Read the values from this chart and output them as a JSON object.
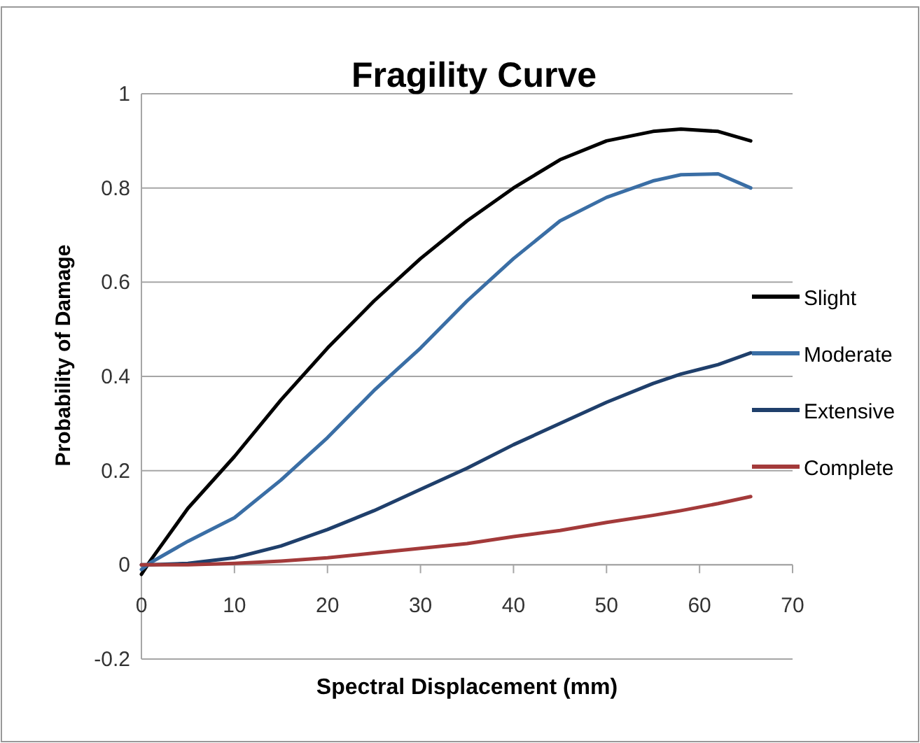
{
  "chart_data": {
    "type": "line",
    "title": "Fragility Curve",
    "xlabel": "Spectral Displacement (mm)",
    "ylabel": "Probability of Damage",
    "x": [
      0,
      1,
      5,
      10,
      15,
      20,
      25,
      30,
      35,
      40,
      45,
      50,
      55,
      58,
      62,
      65.5
    ],
    "series": [
      {
        "name": "Slight",
        "color": "#000000",
        "values": [
          -0.02,
          0.01,
          0.12,
          0.23,
          0.35,
          0.46,
          0.56,
          0.65,
          0.73,
          0.8,
          0.86,
          0.9,
          0.92,
          0.925,
          0.92,
          0.9
        ]
      },
      {
        "name": "Moderate",
        "color": "#3a6ea5",
        "values": [
          -0.01,
          0.005,
          0.05,
          0.1,
          0.18,
          0.27,
          0.37,
          0.46,
          0.56,
          0.65,
          0.73,
          0.78,
          0.815,
          0.828,
          0.83,
          0.8
        ]
      },
      {
        "name": "Extensive",
        "color": "#1f3f6b",
        "values": [
          0,
          0,
          0.003,
          0.015,
          0.04,
          0.075,
          0.115,
          0.16,
          0.205,
          0.255,
          0.3,
          0.345,
          0.385,
          0.405,
          0.425,
          0.45
        ]
      },
      {
        "name": "Complete",
        "color": "#a33a3a",
        "values": [
          0,
          0,
          0,
          0.003,
          0.008,
          0.015,
          0.025,
          0.035,
          0.045,
          0.06,
          0.073,
          0.09,
          0.105,
          0.115,
          0.13,
          0.145
        ]
      }
    ],
    "xlim": [
      0,
      70
    ],
    "xticks": [
      0,
      10,
      20,
      30,
      40,
      50,
      60,
      70
    ],
    "ylim": [
      -0.2,
      1
    ],
    "yticks": [
      -0.2,
      0,
      0.2,
      0.4,
      0.6,
      0.8,
      1
    ],
    "grid": "y",
    "legend": "right",
    "marker": "none",
    "line_style": "solid"
  }
}
